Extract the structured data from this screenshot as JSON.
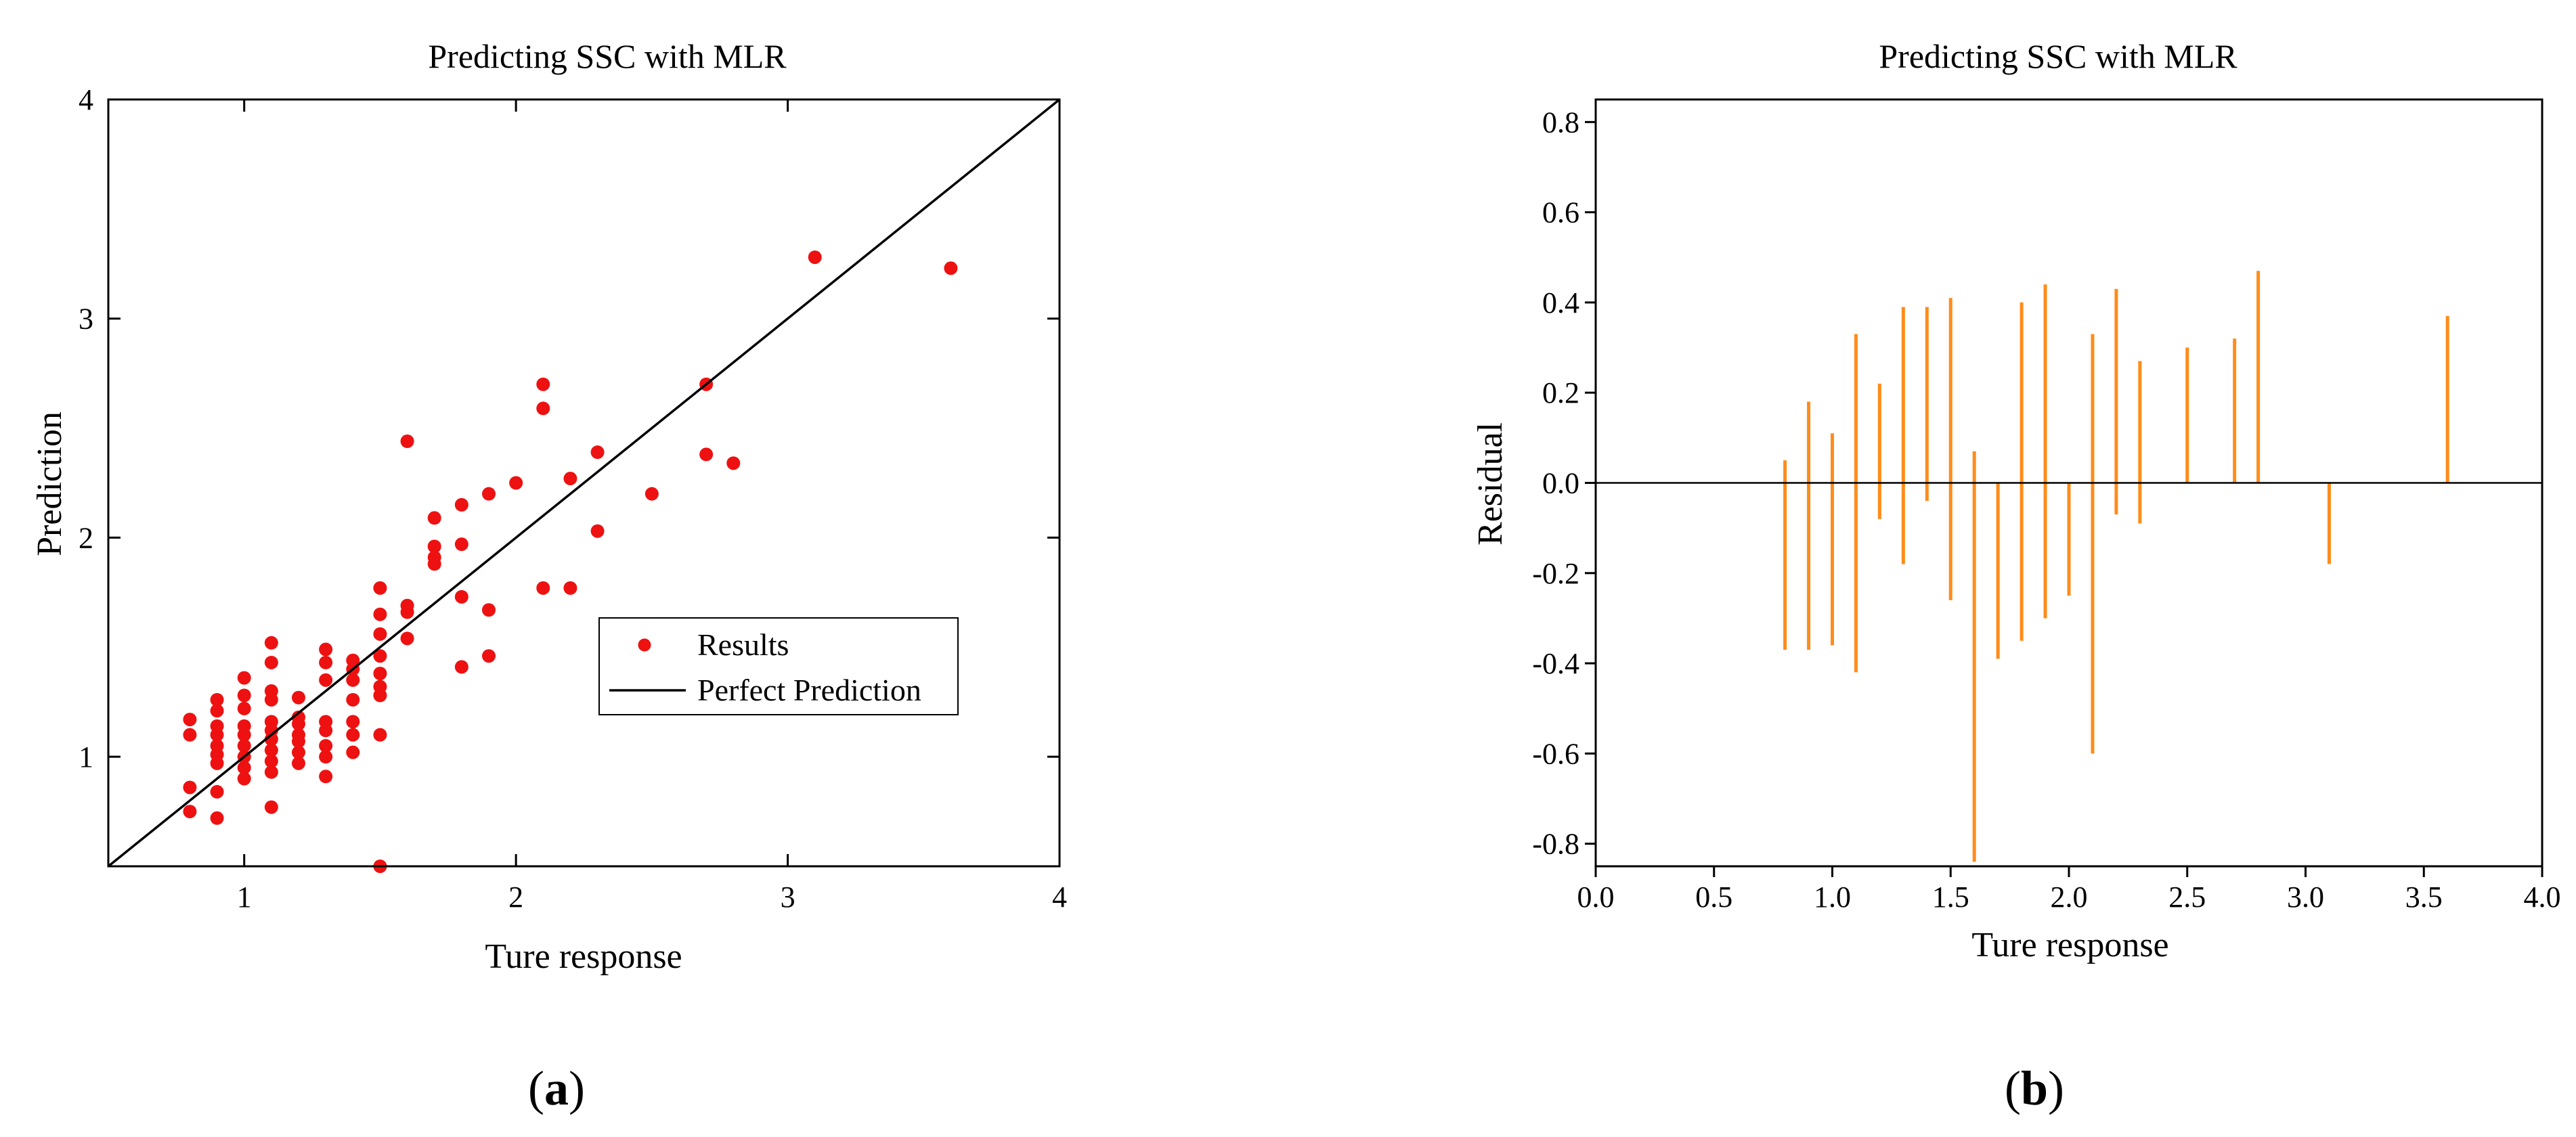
{
  "chart_data": [
    {
      "type": "scatter",
      "panel_label": "a",
      "title": "Predicting SSC with MLR",
      "xlabel": "Ture response",
      "ylabel": "Prediction",
      "xlim": [
        0.5,
        4
      ],
      "ylim": [
        0.5,
        4
      ],
      "xticks": [
        "1",
        "2",
        "3",
        "4"
      ],
      "yticks": [
        "1",
        "2",
        "3",
        "4"
      ],
      "grid": false,
      "legend_position": "center-right",
      "series": [
        {
          "name": "Results",
          "color": "#ee1111",
          "points": [
            [
              0.8,
              0.75
            ],
            [
              0.8,
              0.86
            ],
            [
              0.8,
              1.1
            ],
            [
              0.8,
              1.17
            ],
            [
              0.9,
              0.72
            ],
            [
              0.9,
              0.84
            ],
            [
              0.9,
              0.97
            ],
            [
              0.9,
              1.01
            ],
            [
              0.9,
              1.05
            ],
            [
              0.9,
              1.1
            ],
            [
              0.9,
              1.14
            ],
            [
              0.9,
              1.21
            ],
            [
              0.9,
              1.26
            ],
            [
              1.0,
              0.9
            ],
            [
              1.0,
              0.95
            ],
            [
              1.0,
              1.0
            ],
            [
              1.0,
              1.05
            ],
            [
              1.0,
              1.1
            ],
            [
              1.0,
              1.14
            ],
            [
              1.0,
              1.22
            ],
            [
              1.0,
              1.28
            ],
            [
              1.0,
              1.36
            ],
            [
              1.1,
              0.77
            ],
            [
              1.1,
              0.93
            ],
            [
              1.1,
              0.98
            ],
            [
              1.1,
              1.03
            ],
            [
              1.1,
              1.08
            ],
            [
              1.1,
              1.12
            ],
            [
              1.1,
              1.16
            ],
            [
              1.1,
              1.26
            ],
            [
              1.1,
              1.3
            ],
            [
              1.1,
              1.43
            ],
            [
              1.1,
              1.52
            ],
            [
              1.2,
              0.97
            ],
            [
              1.2,
              1.02
            ],
            [
              1.2,
              1.07
            ],
            [
              1.2,
              1.1
            ],
            [
              1.2,
              1.15
            ],
            [
              1.2,
              1.18
            ],
            [
              1.2,
              1.27
            ],
            [
              1.3,
              0.91
            ],
            [
              1.3,
              1.0
            ],
            [
              1.3,
              1.05
            ],
            [
              1.3,
              1.12
            ],
            [
              1.3,
              1.16
            ],
            [
              1.3,
              1.35
            ],
            [
              1.3,
              1.43
            ],
            [
              1.3,
              1.49
            ],
            [
              1.4,
              1.02
            ],
            [
              1.4,
              1.1
            ],
            [
              1.4,
              1.16
            ],
            [
              1.4,
              1.26
            ],
            [
              1.4,
              1.35
            ],
            [
              1.4,
              1.4
            ],
            [
              1.4,
              1.44
            ],
            [
              1.5,
              0.5
            ],
            [
              1.5,
              1.1
            ],
            [
              1.5,
              1.28
            ],
            [
              1.5,
              1.32
            ],
            [
              1.5,
              1.38
            ],
            [
              1.5,
              1.46
            ],
            [
              1.5,
              1.56
            ],
            [
              1.5,
              1.65
            ],
            [
              1.5,
              1.77
            ],
            [
              1.6,
              1.54
            ],
            [
              1.6,
              1.66
            ],
            [
              1.6,
              1.69
            ],
            [
              1.6,
              2.44
            ],
            [
              1.7,
              1.88
            ],
            [
              1.7,
              1.91
            ],
            [
              1.7,
              1.96
            ],
            [
              1.7,
              2.09
            ],
            [
              1.8,
              1.41
            ],
            [
              1.8,
              1.73
            ],
            [
              1.8,
              1.97
            ],
            [
              1.8,
              2.15
            ],
            [
              1.9,
              1.46
            ],
            [
              1.9,
              1.67
            ],
            [
              1.9,
              2.2
            ],
            [
              2.0,
              2.25
            ],
            [
              2.1,
              1.77
            ],
            [
              2.1,
              2.59
            ],
            [
              2.1,
              2.7
            ],
            [
              2.2,
              1.77
            ],
            [
              2.2,
              2.27
            ],
            [
              2.3,
              2.03
            ],
            [
              2.3,
              2.39
            ],
            [
              2.5,
              2.2
            ],
            [
              2.7,
              2.38
            ],
            [
              2.7,
              2.7
            ],
            [
              2.8,
              2.34
            ],
            [
              3.1,
              3.28
            ],
            [
              3.6,
              3.23
            ]
          ]
        },
        {
          "name": "Perfect Prediction",
          "color": "#000000",
          "line": [
            [
              0.5,
              0.5
            ],
            [
              4,
              4
            ]
          ]
        }
      ]
    },
    {
      "type": "bar",
      "panel_label": "b",
      "title": "Predicting SSC with MLR",
      "xlabel": "Ture response",
      "ylabel": "Residual",
      "xlim": [
        0.0,
        4.0
      ],
      "ylim": [
        -0.85,
        0.85
      ],
      "xticks": [
        "0.0",
        "0.5",
        "1.0",
        "1.5",
        "2.0",
        "2.5",
        "3.0",
        "3.5",
        "4.0"
      ],
      "yticks": [
        "-0.8",
        "-0.6",
        "-0.4",
        "-0.2",
        "0.0",
        "0.2",
        "0.4",
        "0.6",
        "0.8"
      ],
      "grid": false,
      "color": "#ff8c1a",
      "residual_ranges": [
        {
          "x": 0.8,
          "min": -0.37,
          "max": 0.05
        },
        {
          "x": 0.9,
          "min": -0.37,
          "max": 0.18
        },
        {
          "x": 1.0,
          "min": -0.36,
          "max": 0.11
        },
        {
          "x": 1.1,
          "min": -0.42,
          "max": 0.33
        },
        {
          "x": 1.2,
          "min": -0.08,
          "max": 0.22
        },
        {
          "x": 1.3,
          "min": -0.18,
          "max": 0.39
        },
        {
          "x": 1.4,
          "min": -0.04,
          "max": 0.39
        },
        {
          "x": 1.5,
          "min": -0.26,
          "max": 0.41
        },
        {
          "x": 1.6,
          "min": -0.84,
          "max": 0.07
        },
        {
          "x": 1.7,
          "min": -0.39,
          "max": 0.0
        },
        {
          "x": 1.8,
          "min": -0.35,
          "max": 0.4
        },
        {
          "x": 1.9,
          "min": -0.3,
          "max": 0.44
        },
        {
          "x": 2.0,
          "min": -0.25,
          "max": 0.0
        },
        {
          "x": 2.1,
          "min": -0.6,
          "max": 0.33
        },
        {
          "x": 2.2,
          "min": -0.07,
          "max": 0.43
        },
        {
          "x": 2.3,
          "min": -0.09,
          "max": 0.27
        },
        {
          "x": 2.5,
          "min": 0.0,
          "max": 0.3
        },
        {
          "x": 2.7,
          "min": 0.0,
          "max": 0.32
        },
        {
          "x": 2.8,
          "min": 0.0,
          "max": 0.47
        },
        {
          "x": 3.1,
          "min": -0.18,
          "max": 0.0
        },
        {
          "x": 3.6,
          "min": 0.0,
          "max": 0.37
        }
      ]
    }
  ]
}
